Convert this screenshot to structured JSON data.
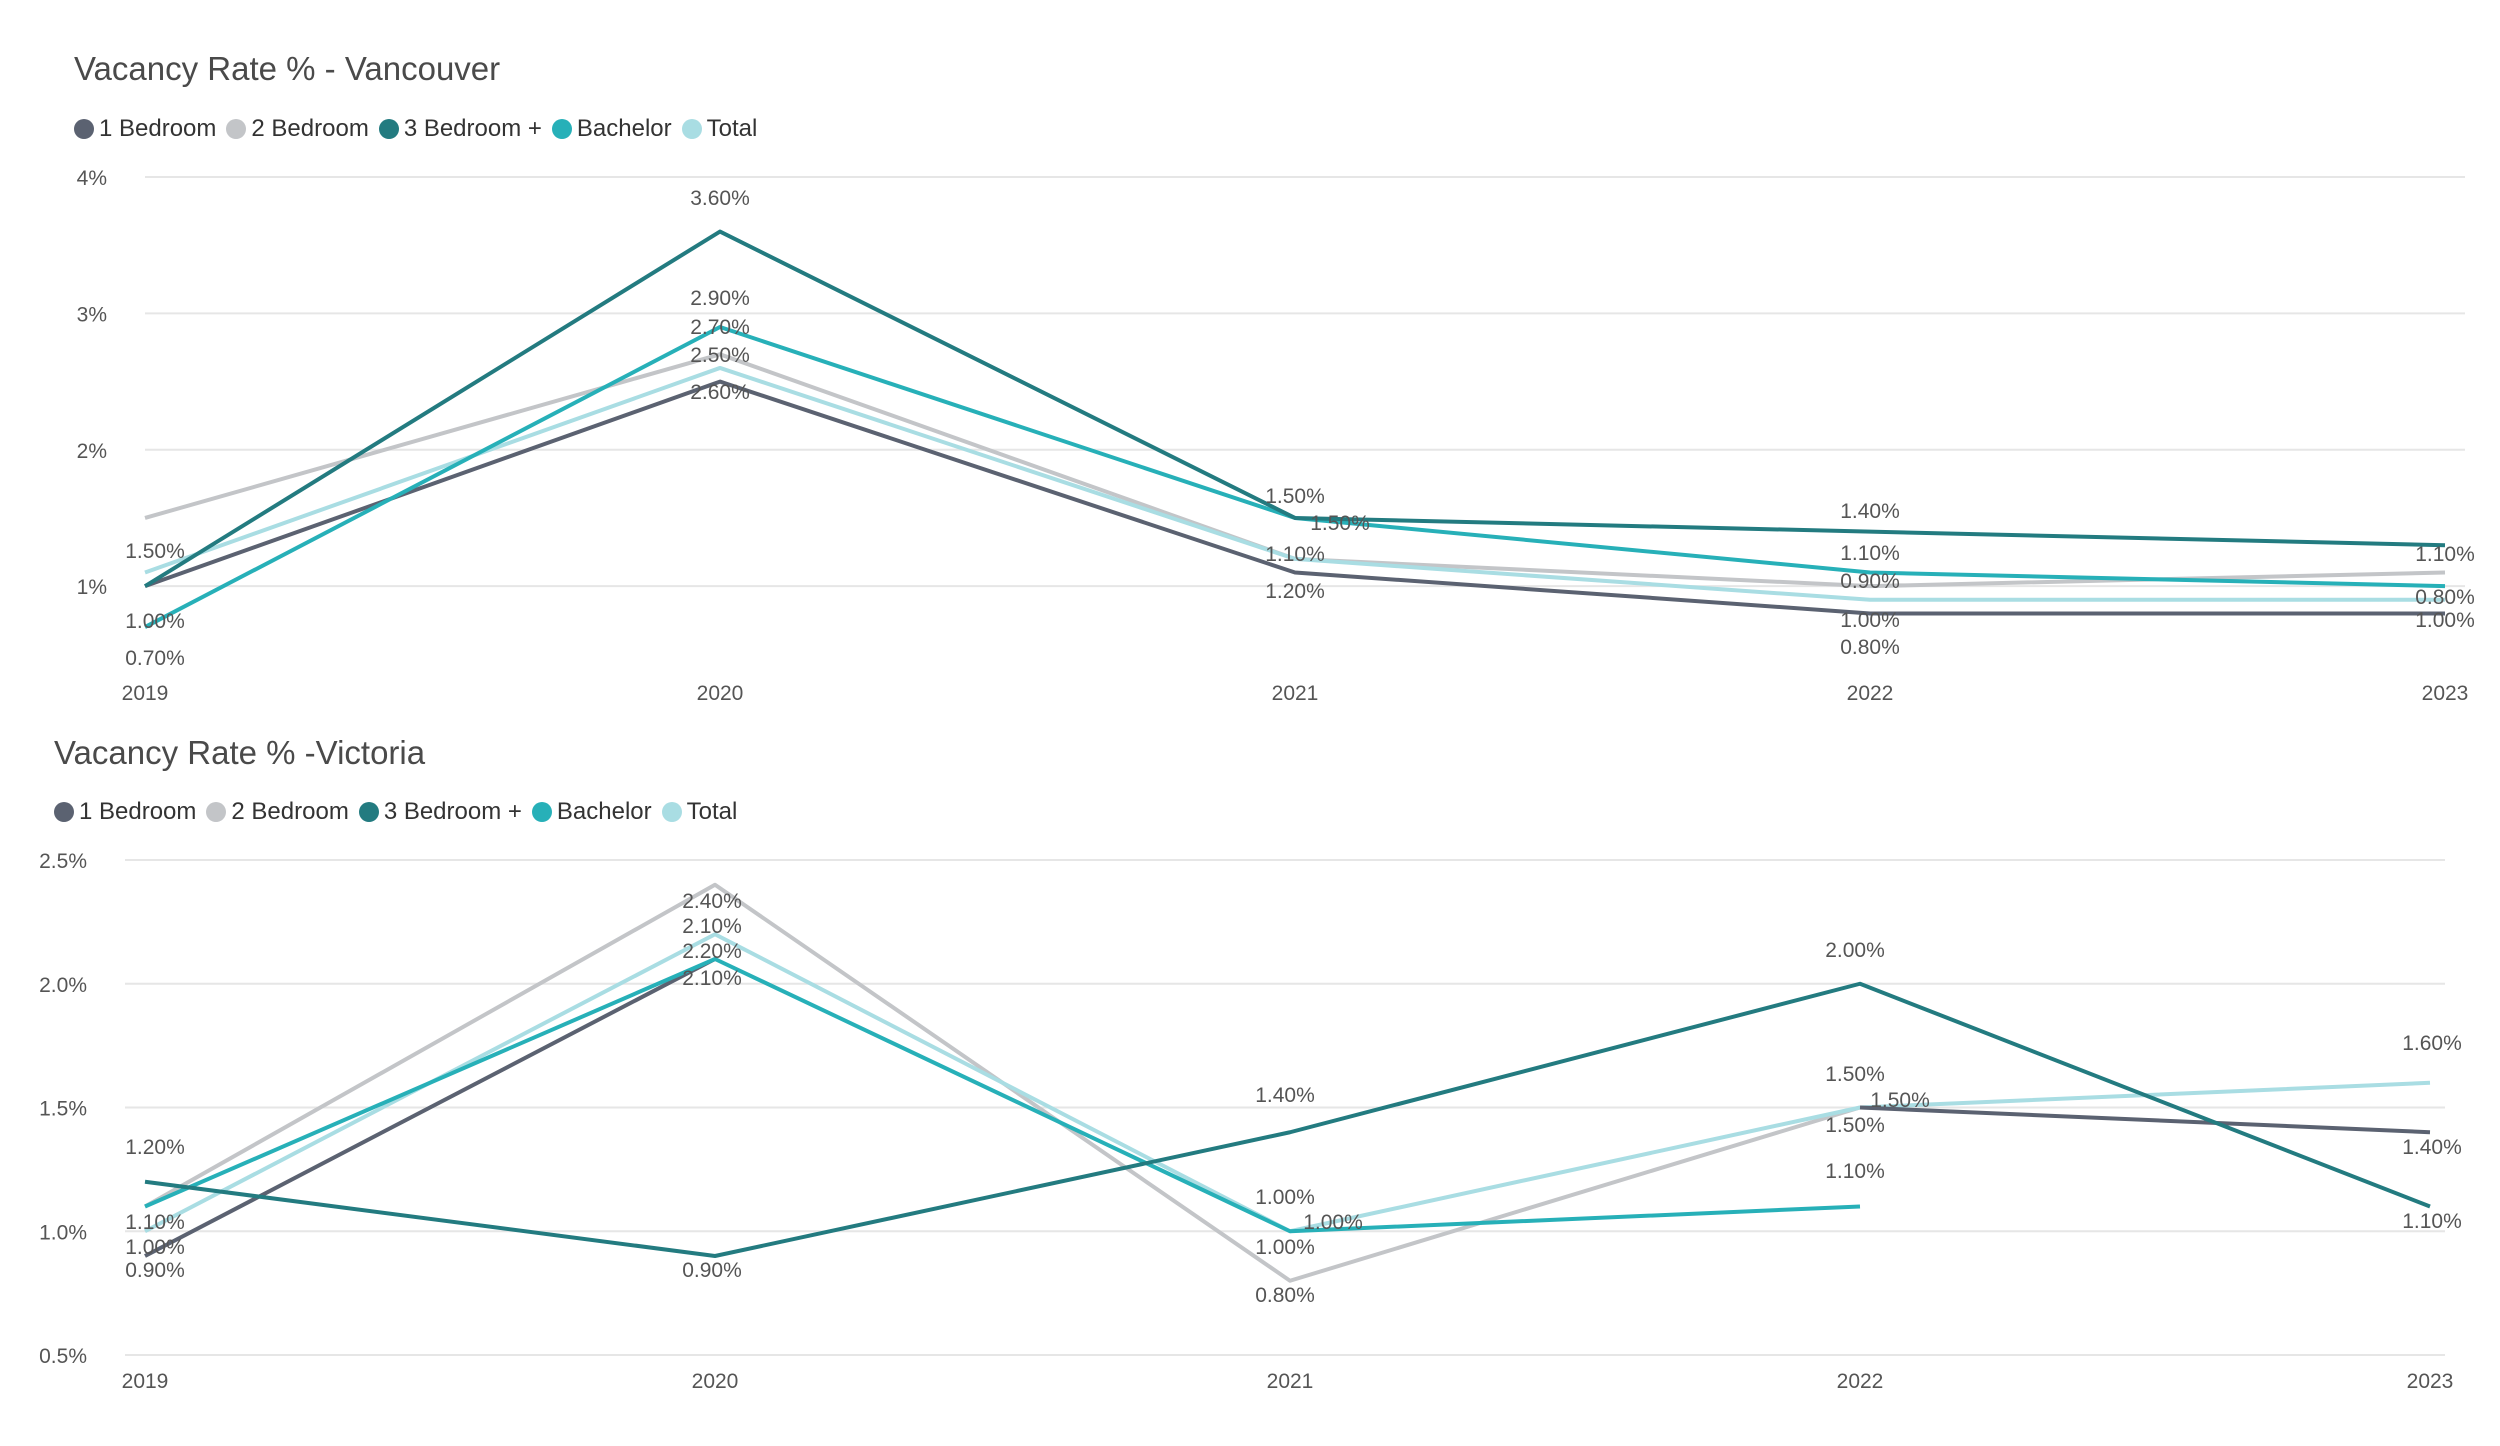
{
  "chart_data": [
    {
      "type": "line",
      "title": "Vacancy Rate % - Vancouver",
      "xlabel": "",
      "ylabel": "",
      "x": [
        "2019",
        "2020",
        "2021",
        "2022",
        "2023"
      ],
      "ylim": [
        0.4,
        4
      ],
      "yticks": [
        1,
        2,
        3,
        4
      ],
      "ytick_labels": [
        "1%",
        "2%",
        "3%",
        "4%"
      ],
      "grid": true,
      "legend_position": "top-left",
      "series": [
        {
          "name": "1 Bedroom",
          "color": "#5b6271",
          "values": [
            1.0,
            2.5,
            1.1,
            0.8,
            0.8
          ]
        },
        {
          "name": "2 Bedroom",
          "color": "#c3c5c8",
          "values": [
            1.5,
            2.7,
            1.2,
            1.0,
            1.1
          ]
        },
        {
          "name": "3 Bedroom +",
          "color": "#237b80",
          "values": [
            1.0,
            3.6,
            1.5,
            1.4,
            1.3
          ]
        },
        {
          "name": "Bachelor",
          "color": "#27b0b8",
          "values": [
            0.7,
            2.9,
            1.5,
            1.1,
            1.0
          ]
        },
        {
          "name": "Total",
          "color": "#a9dde3",
          "values": [
            1.1,
            2.6,
            1.2,
            0.9,
            0.9
          ]
        }
      ],
      "data_labels": [
        [
          "1.50%",
          "1.00%",
          "0.70%"
        ],
        [
          "3.60%",
          "2.90%",
          "2.70%",
          "2.50%",
          "2.60%"
        ],
        [
          "1.50%",
          "1.50%",
          "1.10%",
          "1.20%"
        ],
        [
          "1.40%",
          "1.10%",
          "0.90%",
          "1.00%",
          "0.80%"
        ],
        [
          "1.10%",
          "0.80%",
          "1.00%"
        ]
      ]
    },
    {
      "type": "line",
      "title": "Vacancy Rate % -Victoria",
      "xlabel": "",
      "ylabel": "",
      "x": [
        "2019",
        "2020",
        "2021",
        "2022",
        "2023"
      ],
      "ylim": [
        0.5,
        2.5
      ],
      "yticks": [
        0.5,
        1.0,
        1.5,
        2.0,
        2.5
      ],
      "ytick_labels": [
        "0.5%",
        "1.0%",
        "1.5%",
        "2.0%",
        "2.5%"
      ],
      "grid": true,
      "legend_position": "top-left",
      "series": [
        {
          "name": "1 Bedroom",
          "color": "#5b6271",
          "values": [
            0.9,
            2.1,
            null,
            1.5,
            1.4
          ]
        },
        {
          "name": "2 Bedroom",
          "color": "#c3c5c8",
          "values": [
            1.1,
            2.4,
            0.8,
            1.5,
            null
          ]
        },
        {
          "name": "3 Bedroom +",
          "color": "#237b80",
          "values": [
            1.2,
            0.9,
            1.4,
            2.0,
            1.1
          ]
        },
        {
          "name": "Bachelor",
          "color": "#27b0b8",
          "values": [
            1.1,
            2.1,
            1.0,
            1.1,
            null
          ]
        },
        {
          "name": "Total",
          "color": "#a9dde3",
          "values": [
            1.0,
            2.2,
            1.0,
            1.5,
            1.6
          ]
        }
      ],
      "data_labels": [
        [
          "1.20%",
          "1.10%",
          "1.00%",
          "0.90%"
        ],
        [
          "2.40%",
          "2.10%",
          "2.20%",
          "2.10%",
          "0.90%"
        ],
        [
          "1.40%",
          "1.00%",
          "1.00%",
          "1.00%",
          "0.80%"
        ],
        [
          "2.00%",
          "1.50%",
          "1.50%",
          "1.50%",
          "1.10%"
        ],
        [
          "1.60%",
          "1.40%",
          "1.10%"
        ]
      ]
    }
  ]
}
